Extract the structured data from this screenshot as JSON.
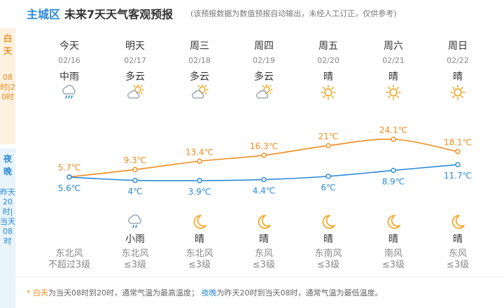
{
  "header": {
    "location": "主城区",
    "title": "未来7天天气客观预报",
    "note": "(该预报数据为数值预报自动输出，未经人工订正，仅供参考)"
  },
  "side": {
    "day_label": "白天",
    "day_time": "08时|20时",
    "night_label": "夜晚",
    "night_time": "昨天20时|当天08时"
  },
  "days": [
    {
      "name": "今天",
      "date": "02/16",
      "day_weather": "中雨",
      "day_icon": "rain-icon",
      "night_weather": "",
      "night_icon": "",
      "wind_dir": "东北风",
      "wind_level": "不超过3级"
    },
    {
      "name": "明天",
      "date": "02/17",
      "day_weather": "多云",
      "day_icon": "partly-cloudy-icon",
      "night_weather": "小雨",
      "night_icon": "light-rain-icon",
      "wind_dir": "东北风",
      "wind_level": "≤3级"
    },
    {
      "name": "周三",
      "date": "02/18",
      "day_weather": "多云",
      "day_icon": "partly-cloudy-icon",
      "night_weather": "晴",
      "night_icon": "moon-icon",
      "wind_dir": "东北风",
      "wind_level": "≤3级"
    },
    {
      "name": "周四",
      "date": "02/19",
      "day_weather": "多云",
      "day_icon": "partly-cloudy-icon",
      "night_weather": "晴",
      "night_icon": "moon-icon",
      "wind_dir": "东风",
      "wind_level": "≤3级"
    },
    {
      "name": "周五",
      "date": "02/20",
      "day_weather": "晴",
      "day_icon": "sun-icon",
      "night_weather": "晴",
      "night_icon": "moon-icon",
      "wind_dir": "东南风",
      "wind_level": "≤3级"
    },
    {
      "name": "周六",
      "date": "02/21",
      "day_weather": "晴",
      "day_icon": "sun-icon",
      "night_weather": "晴",
      "night_icon": "moon-icon",
      "wind_dir": "南风",
      "wind_level": "≤3级"
    },
    {
      "name": "周日",
      "date": "02/22",
      "day_weather": "晴",
      "day_icon": "sun-icon",
      "night_weather": "晴",
      "night_icon": "moon-icon",
      "wind_dir": "东风",
      "wind_level": "≤3级"
    }
  ],
  "chart_data": {
    "type": "line",
    "categories": [
      "02/16",
      "02/17",
      "02/18",
      "02/19",
      "02/20",
      "02/21",
      "02/22"
    ],
    "series": [
      {
        "values": [
          5.7,
          9.3,
          13.4,
          16.3,
          21,
          24.1,
          18.1
        ],
        "labels": [
          "5.7℃",
          "9.3℃",
          "13.4℃",
          "16.3℃",
          "21℃",
          "24.1℃",
          "18.1℃"
        ],
        "color": "#f08c1c"
      },
      {
        "values": [
          5.6,
          4,
          3.9,
          4.4,
          6,
          8.9,
          11.7
        ],
        "labels": [
          "5.6℃",
          "4℃",
          "3.9℃",
          "4.4℃",
          "6℃",
          "8.9℃",
          "11.7℃"
        ],
        "color": "#2b8ad6"
      }
    ],
    "ylim": [
      2,
      26
    ]
  },
  "footer": {
    "prefix": "* ",
    "day_term": "白天",
    "day_desc": "为当天08时到20时，通常气温为最高温度；",
    "night_term": "夜晚",
    "night_desc": "为昨天20时到当天08时，通常气温为最低温度。"
  },
  "colors": {
    "accent": "#2b8ad6",
    "day": "#f08c1c",
    "night": "#2b8ad6",
    "sun": "#f5a623"
  }
}
